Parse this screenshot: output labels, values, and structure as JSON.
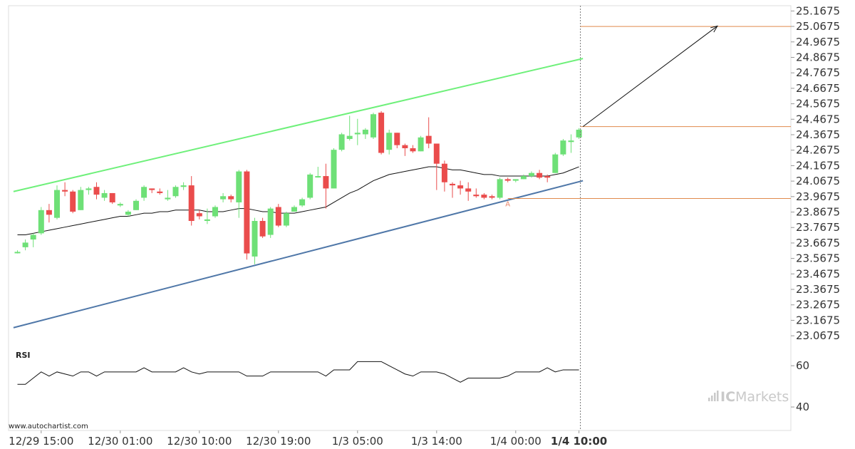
{
  "chart_data": {
    "type": "candlestick",
    "y_ticks": [
      25.1675,
      25.0675,
      24.9675,
      24.8675,
      24.7675,
      24.6675,
      24.5675,
      24.4675,
      24.3675,
      24.2675,
      24.1675,
      24.0675,
      23.9675,
      23.8675,
      23.7675,
      23.6675,
      23.5675,
      23.4675,
      23.3675,
      23.2675,
      23.1675,
      23.0675
    ],
    "ylim": [
      23.0175,
      25.2015
    ],
    "x_labels": [
      "12/29 15:00",
      "12/30 01:00",
      "12/30 10:00",
      "12/30 19:00",
      "1/3 05:00",
      "1/3 14:00",
      "1/4 00:00",
      "1/4 10:00"
    ],
    "x_label_positions": [
      3,
      13,
      23,
      33,
      43,
      53,
      63,
      71
    ],
    "bold_x_label": "1/4 10:00",
    "candles": [
      [
        23.61,
        23.62,
        23.6,
        23.61
      ],
      [
        23.64,
        23.69,
        23.62,
        23.67
      ],
      [
        23.69,
        23.73,
        23.64,
        23.72
      ],
      [
        23.73,
        23.9,
        23.72,
        23.88
      ],
      [
        23.88,
        23.92,
        23.8,
        23.85
      ],
      [
        23.83,
        24.04,
        23.82,
        24.01
      ],
      [
        24.01,
        24.06,
        23.97,
        24.0
      ],
      [
        24.0,
        24.01,
        23.86,
        23.87
      ],
      [
        23.88,
        24.03,
        23.88,
        24.01
      ],
      [
        24.01,
        24.03,
        23.98,
        24.02
      ],
      [
        24.03,
        24.06,
        23.95,
        23.98
      ],
      [
        23.96,
        24.01,
        23.94,
        23.99
      ],
      [
        23.99,
        23.99,
        23.92,
        23.93
      ],
      [
        23.91,
        23.93,
        23.9,
        23.92
      ],
      [
        23.85,
        23.88,
        23.84,
        23.87
      ],
      [
        23.88,
        23.95,
        23.88,
        23.94
      ],
      [
        23.96,
        24.04,
        23.94,
        24.03
      ],
      [
        24.02,
        24.02,
        23.99,
        24.01
      ],
      [
        24.0,
        24.02,
        23.98,
        23.99
      ],
      [
        23.95,
        24.01,
        23.94,
        23.96
      ],
      [
        23.97,
        24.04,
        23.96,
        24.03
      ],
      [
        24.03,
        24.06,
        24.01,
        24.04
      ],
      [
        24.04,
        24.1,
        23.78,
        23.81
      ],
      [
        23.86,
        23.88,
        23.82,
        23.84
      ],
      [
        23.81,
        23.89,
        23.79,
        23.82
      ],
      [
        23.84,
        23.91,
        23.83,
        23.9
      ],
      [
        23.95,
        23.99,
        23.93,
        23.97
      ],
      [
        23.97,
        23.98,
        23.93,
        23.95
      ],
      [
        23.93,
        24.14,
        23.83,
        24.13
      ],
      [
        24.13,
        24.14,
        23.56,
        23.6
      ],
      [
        23.58,
        23.83,
        23.53,
        23.81
      ],
      [
        23.81,
        23.83,
        23.7,
        23.71
      ],
      [
        23.72,
        23.9,
        23.7,
        23.89
      ],
      [
        23.9,
        23.92,
        23.77,
        23.78
      ],
      [
        23.78,
        23.87,
        23.77,
        23.86
      ],
      [
        23.87,
        23.91,
        23.87,
        23.9
      ],
      [
        23.91,
        23.96,
        23.9,
        23.95
      ],
      [
        23.96,
        24.12,
        23.95,
        24.11
      ],
      [
        24.1,
        24.16,
        24.09,
        24.1
      ],
      [
        24.1,
        24.18,
        23.89,
        24.02
      ],
      [
        24.02,
        24.28,
        24.02,
        24.27
      ],
      [
        24.27,
        24.38,
        24.26,
        24.37
      ],
      [
        24.34,
        24.49,
        24.33,
        24.36
      ],
      [
        24.37,
        24.47,
        24.3,
        24.38
      ],
      [
        24.37,
        24.41,
        24.34,
        24.4
      ],
      [
        24.35,
        24.51,
        24.34,
        24.5
      ],
      [
        24.51,
        24.52,
        24.24,
        24.25
      ],
      [
        24.27,
        24.4,
        24.24,
        24.38
      ],
      [
        24.38,
        24.38,
        24.28,
        24.3
      ],
      [
        24.3,
        24.31,
        24.23,
        24.28
      ],
      [
        24.28,
        24.3,
        24.25,
        24.26
      ],
      [
        24.26,
        24.36,
        24.26,
        24.35
      ],
      [
        24.36,
        24.48,
        24.28,
        24.31
      ],
      [
        24.31,
        24.31,
        24.01,
        24.18
      ],
      [
        24.18,
        24.2,
        24.0,
        24.06
      ],
      [
        24.05,
        24.06,
        23.96,
        24.04
      ],
      [
        24.04,
        24.07,
        23.98,
        24.02
      ],
      [
        24.02,
        24.06,
        23.94,
        24.0
      ],
      [
        23.98,
        24.02,
        23.96,
        23.97
      ],
      [
        23.98,
        23.99,
        23.95,
        23.96
      ],
      [
        23.97,
        23.98,
        23.95,
        23.96
      ],
      [
        23.96,
        24.09,
        23.95,
        24.08
      ],
      [
        24.08,
        24.09,
        24.06,
        24.07
      ],
      [
        24.07,
        24.08,
        24.06,
        24.08
      ],
      [
        24.08,
        24.11,
        24.08,
        24.1
      ],
      [
        24.1,
        24.13,
        24.09,
        24.12
      ],
      [
        24.12,
        24.14,
        24.08,
        24.09
      ],
      [
        24.1,
        24.11,
        24.06,
        24.09
      ],
      [
        24.12,
        24.25,
        24.12,
        24.24
      ],
      [
        24.24,
        24.34,
        24.23,
        24.33
      ],
      [
        24.32,
        24.37,
        24.25,
        24.33
      ],
      [
        24.35,
        24.41,
        24.34,
        24.4
      ]
    ],
    "moving_average": [
      23.72,
      23.72,
      23.73,
      23.74,
      23.75,
      23.76,
      23.77,
      23.78,
      23.79,
      23.8,
      23.81,
      23.82,
      23.83,
      23.84,
      23.84,
      23.85,
      23.86,
      23.86,
      23.87,
      23.87,
      23.88,
      23.88,
      23.88,
      23.88,
      23.87,
      23.87,
      23.87,
      23.88,
      23.89,
      23.89,
      23.88,
      23.87,
      23.87,
      23.86,
      23.86,
      23.86,
      23.87,
      23.88,
      23.89,
      23.9,
      23.93,
      23.96,
      23.99,
      24.01,
      24.04,
      24.07,
      24.09,
      24.11,
      24.12,
      24.13,
      24.14,
      24.15,
      24.16,
      24.16,
      24.15,
      24.14,
      24.14,
      24.13,
      24.12,
      24.11,
      24.11,
      24.1,
      24.1,
      24.1,
      24.1,
      24.1,
      24.1,
      24.1,
      24.11,
      24.12,
      24.14,
      24.16
    ],
    "resistance_line": {
      "from": [
        -0.5,
        24.0
      ],
      "to": [
        71.5,
        24.86
      ]
    },
    "support_line": {
      "from": [
        -0.5,
        23.12
      ],
      "to": [
        71.5,
        24.07
      ]
    },
    "target_level": 25.0675,
    "breakout_level": 24.42,
    "pattern_level": 23.955,
    "pattern_point_label": "A",
    "pattern_point_index": 62,
    "forecast_arrow": {
      "from": [
        71.5,
        24.42
      ],
      "to": [
        88.5,
        25.07
      ]
    },
    "rsi": {
      "label": "RSI",
      "ticks": [
        60,
        40
      ],
      "ylim": [
        30,
        68
      ],
      "values": [
        51,
        51,
        54,
        57,
        55,
        57,
        56,
        55,
        57,
        57,
        55,
        57,
        57,
        57,
        57,
        57,
        59,
        57,
        57,
        57,
        57,
        59,
        57,
        56,
        57,
        57,
        57,
        57,
        57,
        55,
        55,
        55,
        57,
        57,
        57,
        57,
        57,
        57,
        57,
        55,
        58,
        58,
        58,
        62,
        62,
        62,
        62,
        60,
        58,
        56,
        55,
        57,
        57,
        57,
        56,
        54,
        52,
        54,
        54,
        54,
        54,
        54,
        55,
        57,
        57,
        57,
        57,
        59,
        57,
        58,
        58,
        58
      ]
    }
  },
  "watermark": "www.autochartist.com",
  "brand": {
    "prefix": "IC",
    "suffix": "Markets"
  },
  "colors": {
    "bull": "#6ee077",
    "bear": "#ea4c4c",
    "resistance": "#6ef07a",
    "support": "#4f77a8",
    "level": "#e08a4c",
    "ma": "#111111"
  }
}
